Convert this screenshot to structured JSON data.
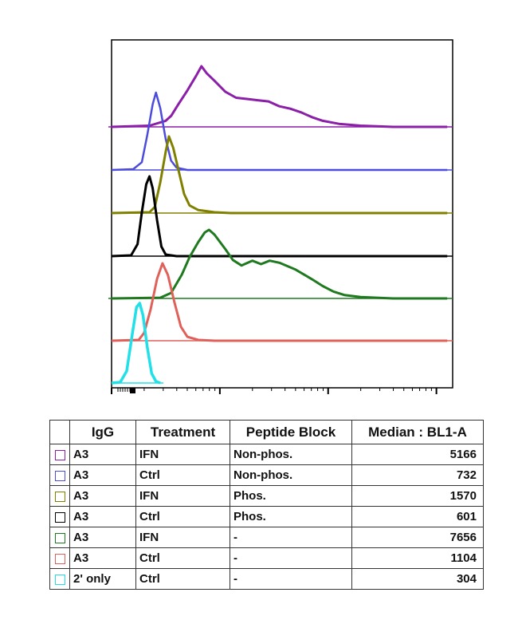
{
  "chart_data": {
    "type": "histogram-overlay",
    "series": [
      {
        "igg": "A3",
        "treatment": "IFN",
        "peptide_block": "Non-phos.",
        "median": "5166",
        "color": "#8b1fa8",
        "curve": [
          [
            0,
            0.0
          ],
          [
            0.35,
            0.02
          ],
          [
            0.5,
            0.1
          ],
          [
            0.55,
            0.18
          ],
          [
            0.62,
            0.38
          ],
          [
            0.7,
            0.6
          ],
          [
            0.78,
            0.84
          ],
          [
            0.83,
            1.0
          ],
          [
            0.88,
            0.88
          ],
          [
            0.95,
            0.76
          ],
          [
            1.05,
            0.58
          ],
          [
            1.15,
            0.48
          ],
          [
            1.25,
            0.46
          ],
          [
            1.35,
            0.44
          ],
          [
            1.45,
            0.42
          ],
          [
            1.55,
            0.34
          ],
          [
            1.65,
            0.3
          ],
          [
            1.75,
            0.24
          ],
          [
            1.85,
            0.16
          ],
          [
            1.95,
            0.1
          ],
          [
            2.1,
            0.05
          ],
          [
            2.3,
            0.02
          ],
          [
            2.6,
            0.0
          ],
          [
            3.1,
            0.0
          ]
        ]
      },
      {
        "igg": "A3",
        "treatment": "Ctrl",
        "peptide_block": "Non-phos.",
        "median": "732",
        "color": "#4b4bdc",
        "curve": [
          [
            0,
            0.0
          ],
          [
            0.2,
            0.01
          ],
          [
            0.28,
            0.1
          ],
          [
            0.33,
            0.45
          ],
          [
            0.38,
            0.85
          ],
          [
            0.41,
            1.0
          ],
          [
            0.45,
            0.8
          ],
          [
            0.5,
            0.4
          ],
          [
            0.55,
            0.12
          ],
          [
            0.6,
            0.03
          ],
          [
            0.7,
            0.0
          ],
          [
            3.1,
            0.0
          ]
        ]
      },
      {
        "igg": "A3",
        "treatment": "IFN",
        "peptide_block": "Phos.",
        "median": "1570",
        "color": "#808000",
        "curve": [
          [
            0,
            0.0
          ],
          [
            0.35,
            0.01
          ],
          [
            0.4,
            0.08
          ],
          [
            0.45,
            0.4
          ],
          [
            0.5,
            0.8
          ],
          [
            0.53,
            1.0
          ],
          [
            0.57,
            0.85
          ],
          [
            0.62,
            0.55
          ],
          [
            0.67,
            0.25
          ],
          [
            0.72,
            0.1
          ],
          [
            0.8,
            0.04
          ],
          [
            0.95,
            0.01
          ],
          [
            1.1,
            0.0
          ],
          [
            3.1,
            0.0
          ]
        ]
      },
      {
        "igg": "A3",
        "treatment": "Ctrl",
        "peptide_block": "Phos.",
        "median": "601",
        "color": "#000000",
        "curve": [
          [
            0,
            0.0
          ],
          [
            0.18,
            0.01
          ],
          [
            0.24,
            0.15
          ],
          [
            0.28,
            0.55
          ],
          [
            0.32,
            0.9
          ],
          [
            0.35,
            1.0
          ],
          [
            0.38,
            0.85
          ],
          [
            0.42,
            0.45
          ],
          [
            0.46,
            0.12
          ],
          [
            0.5,
            0.02
          ],
          [
            0.6,
            0.0
          ],
          [
            3.1,
            0.0
          ]
        ]
      },
      {
        "igg": "A3",
        "treatment": "IFN",
        "peptide_block": "-",
        "median": "7656",
        "color": "#1f7a1f",
        "curve": [
          [
            0,
            0.0
          ],
          [
            0.45,
            0.01
          ],
          [
            0.55,
            0.08
          ],
          [
            0.65,
            0.35
          ],
          [
            0.72,
            0.6
          ],
          [
            0.8,
            0.82
          ],
          [
            0.86,
            0.96
          ],
          [
            0.9,
            1.0
          ],
          [
            0.95,
            0.93
          ],
          [
            1.05,
            0.72
          ],
          [
            1.12,
            0.56
          ],
          [
            1.2,
            0.48
          ],
          [
            1.3,
            0.55
          ],
          [
            1.38,
            0.5
          ],
          [
            1.46,
            0.55
          ],
          [
            1.55,
            0.52
          ],
          [
            1.7,
            0.42
          ],
          [
            1.85,
            0.28
          ],
          [
            1.95,
            0.18
          ],
          [
            2.05,
            0.1
          ],
          [
            2.15,
            0.05
          ],
          [
            2.3,
            0.02
          ],
          [
            2.6,
            0.0
          ],
          [
            3.1,
            0.0
          ]
        ]
      },
      {
        "igg": "A3",
        "treatment": "Ctrl",
        "peptide_block": "-",
        "median": "1104",
        "color": "#e0605a",
        "curve": [
          [
            0,
            0.0
          ],
          [
            0.25,
            0.01
          ],
          [
            0.3,
            0.1
          ],
          [
            0.36,
            0.4
          ],
          [
            0.42,
            0.8
          ],
          [
            0.47,
            1.0
          ],
          [
            0.52,
            0.85
          ],
          [
            0.58,
            0.5
          ],
          [
            0.64,
            0.18
          ],
          [
            0.7,
            0.05
          ],
          [
            0.8,
            0.01
          ],
          [
            0.95,
            0.0
          ],
          [
            3.1,
            0.0
          ]
        ]
      },
      {
        "igg": "2' only",
        "treatment": "Ctrl",
        "peptide_block": "-",
        "median": "304",
        "color": "#22e0e8",
        "curve": [
          [
            0,
            0.0
          ],
          [
            0.08,
            0.01
          ],
          [
            0.14,
            0.15
          ],
          [
            0.19,
            0.6
          ],
          [
            0.23,
            0.95
          ],
          [
            0.26,
            1.0
          ],
          [
            0.29,
            0.85
          ],
          [
            0.33,
            0.45
          ],
          [
            0.37,
            0.12
          ],
          [
            0.41,
            0.02
          ],
          [
            0.45,
            0.0
          ]
        ]
      }
    ],
    "table_headers": [
      "IgG",
      "Treatment",
      "Peptide Block",
      "Median : BL1-A"
    ]
  }
}
